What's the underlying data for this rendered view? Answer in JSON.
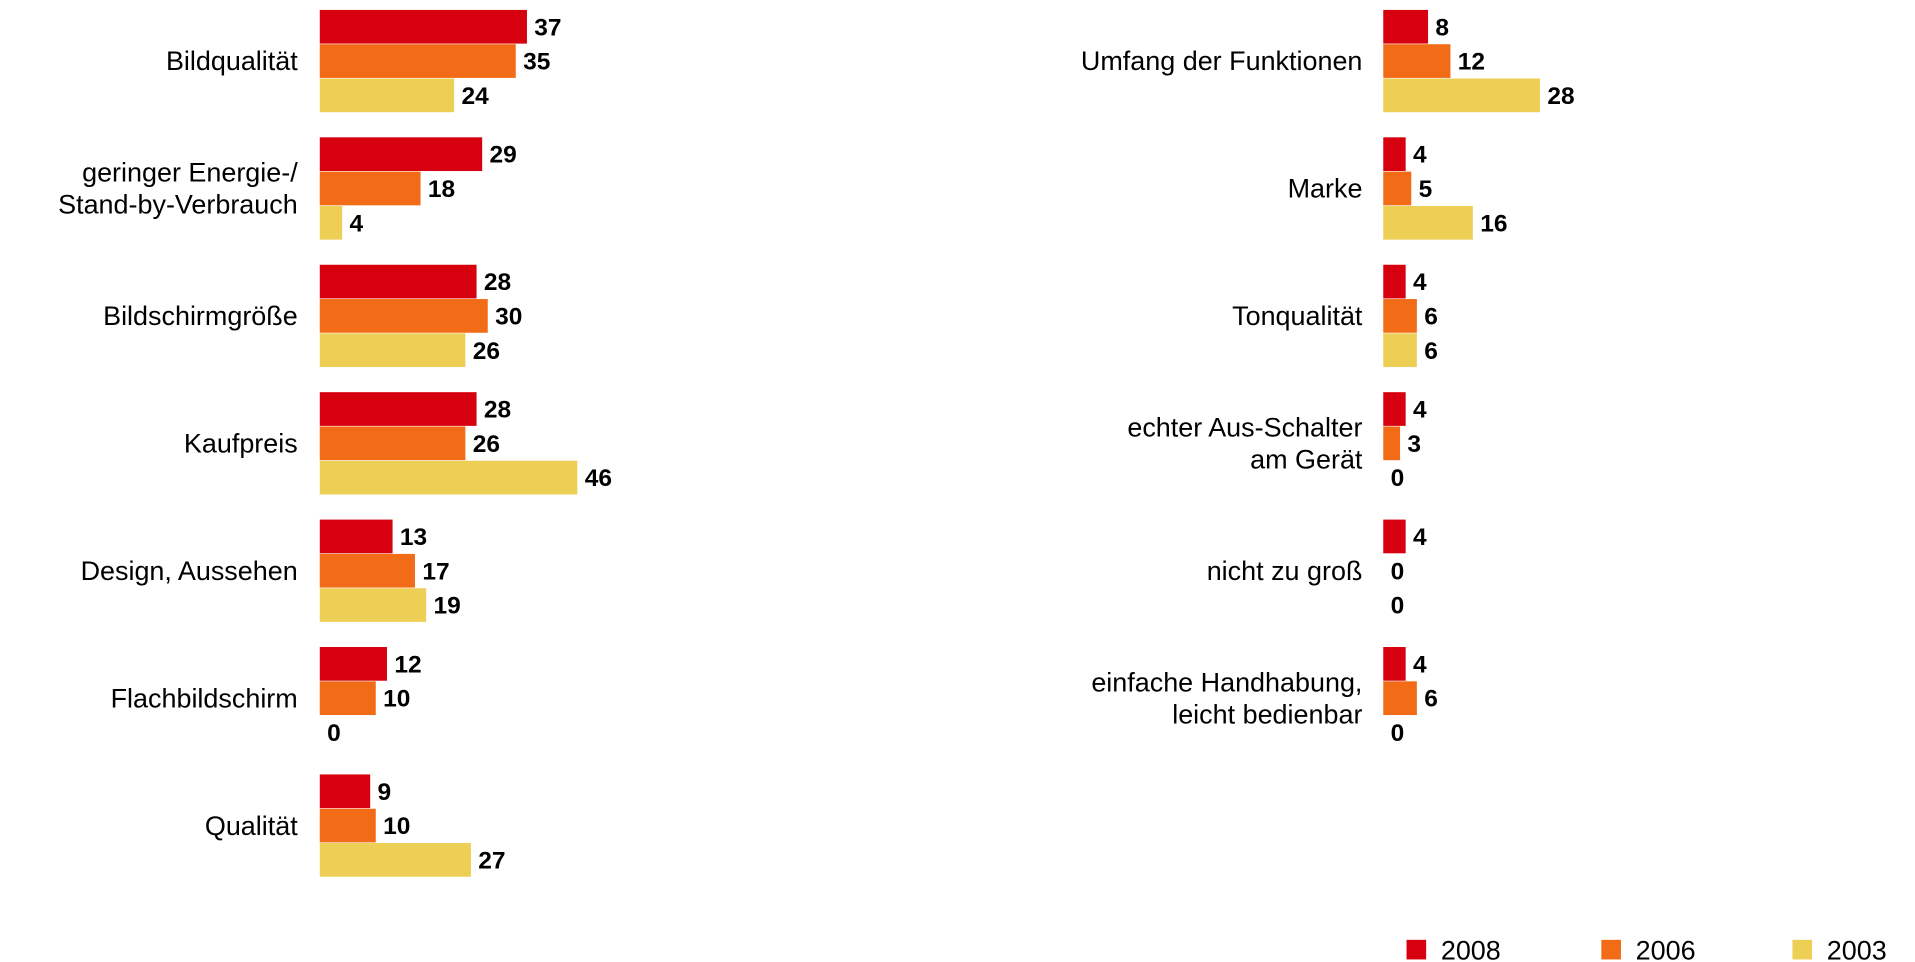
{
  "chart_data": {
    "type": "bar",
    "orientation": "horizontal",
    "categories": [
      "Bildqualität",
      "geringer Energie-/\nStand-by-Verbrauch",
      "Bildschirmgröße",
      "Kaufpreis",
      "Design, Aussehen",
      "Flachbildschirm",
      "Qualität",
      "Umfang der Funktionen",
      "Marke",
      "Tonqualität",
      "echter Aus-Schalter\nam Gerät",
      "nicht zu groß",
      "einfache Handhabung,\nleicht bedienbar"
    ],
    "series": [
      {
        "name": "2008",
        "color": "#d7000f",
        "values": [
          37,
          29,
          28,
          28,
          13,
          12,
          9,
          8,
          4,
          4,
          4,
          4,
          4
        ]
      },
      {
        "name": "2006",
        "color": "#f26b16",
        "values": [
          35,
          18,
          30,
          26,
          17,
          10,
          10,
          12,
          5,
          6,
          3,
          0,
          6
        ]
      },
      {
        "name": "2003",
        "color": "#eecf55",
        "values": [
          24,
          4,
          26,
          46,
          19,
          0,
          27,
          28,
          16,
          6,
          0,
          0,
          0
        ]
      }
    ]
  }
}
